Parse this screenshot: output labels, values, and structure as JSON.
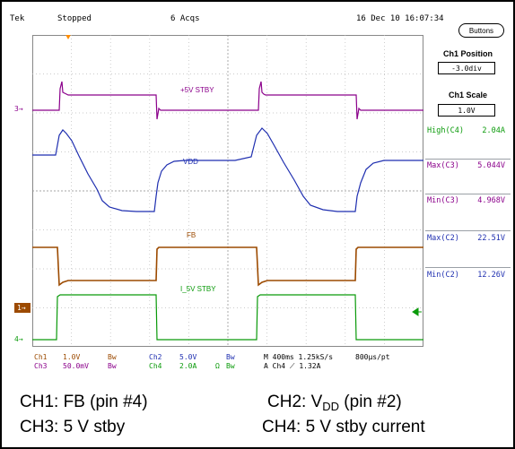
{
  "status": {
    "brand": "Tek",
    "state": "Stopped",
    "acquisitions": "6 Acqs",
    "datetime": "16 Dec 10 16:07:34",
    "buttons_label": "Buttons"
  },
  "panel": {
    "position_title": "Ch1 Position",
    "position_value": "-3.0div",
    "scale_title": "Ch1 Scale",
    "scale_value": "1.0V",
    "measurements": [
      {
        "label": "High(C4)",
        "value": "2.04A",
        "color": "#0a9a0a"
      },
      {
        "label": "Max(C3)",
        "value": "5.044V",
        "color": "#8b008b"
      },
      {
        "label": "Min(C3)",
        "value": "4.968V",
        "color": "#8b008b"
      },
      {
        "label": "Max(C2)",
        "value": "22.51V",
        "color": "#1f2fb0"
      },
      {
        "label": "Min(C2)",
        "value": "12.26V",
        "color": "#1f2fb0"
      }
    ]
  },
  "trace_labels": {
    "ch3": "+5V STBY",
    "ch2": "VDD",
    "ch1": "FB",
    "ch4": "I_5V STBY"
  },
  "markers": {
    "ch3": "3",
    "ch1": "1",
    "ch4": "4"
  },
  "readout": {
    "ch1_name": "Ch1",
    "ch1_scale": "1.0V",
    "ch1_bw": "Bw",
    "ch3_name": "Ch3",
    "ch3_scale": "50.0mV",
    "ch3_bw": "Bw",
    "ch2_name": "Ch2",
    "ch2_scale": "5.0V",
    "ch2_bw": "Bw",
    "ch4_name": "Ch4",
    "ch4_scale": "2.0A",
    "ch4_omega": "Ω",
    "ch4_bw": "Bw",
    "timebase": "M 400ms 1.25kS/s",
    "sample_interval": "800µs/pt",
    "trigger": "A  Ch4  ⟋  1.32A"
  },
  "colors": {
    "ch1": "#9c4a00",
    "ch2": "#1f2fb0",
    "ch3": "#8b008b",
    "ch4": "#0a9a0a",
    "trigger": "#ff8c00"
  },
  "caption": {
    "ch1": "CH1: FB (pin #4)",
    "ch2_prefix": "CH2: V",
    "ch2_sub": "DD",
    "ch2_suffix": " (pin #2)",
    "ch3": "CH3: 5 V stby",
    "ch4": "CH4: 5 V stby current"
  }
}
